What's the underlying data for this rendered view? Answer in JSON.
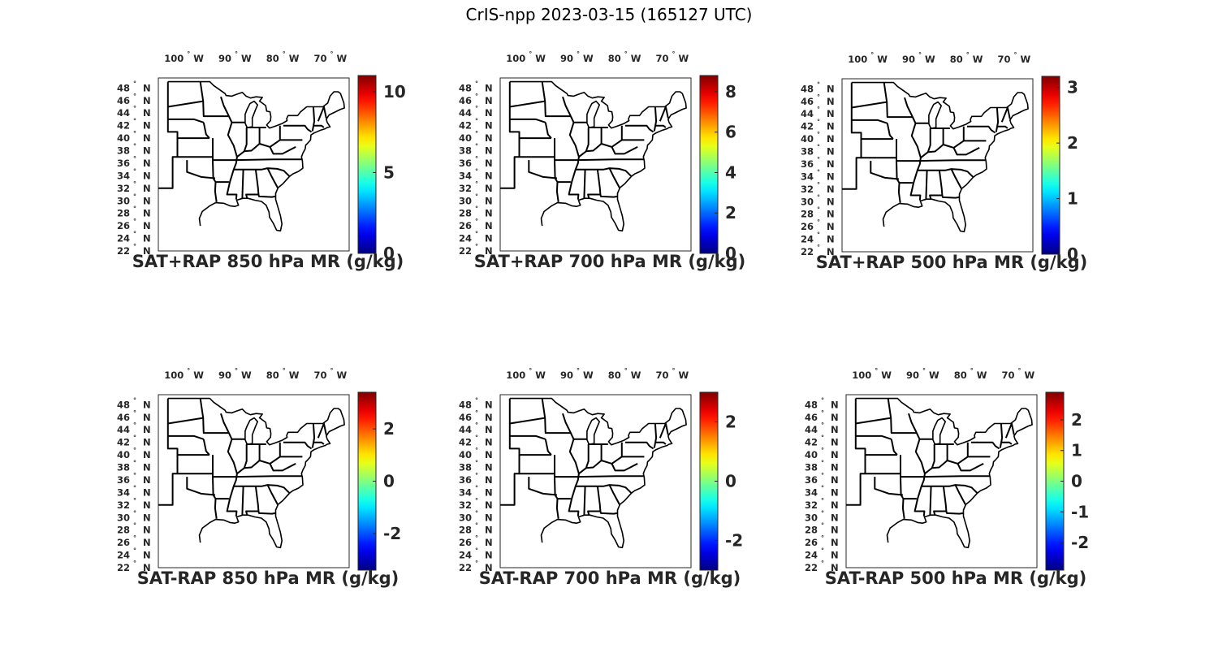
{
  "figure": {
    "title": "CrIS-npp 2023-03-15 (165127 UTC)"
  },
  "lon_ticks": [
    {
      "num": "100",
      "hem": "W"
    },
    {
      "num": "90",
      "hem": "W"
    },
    {
      "num": "80",
      "hem": "W"
    },
    {
      "num": "70",
      "hem": "W"
    }
  ],
  "lat_ticks": [
    {
      "num": "48",
      "hem": "N"
    },
    {
      "num": "46",
      "hem": "N"
    },
    {
      "num": "44",
      "hem": "N"
    },
    {
      "num": "42",
      "hem": "N"
    },
    {
      "num": "40",
      "hem": "N"
    },
    {
      "num": "38",
      "hem": "N"
    },
    {
      "num": "36",
      "hem": "N"
    },
    {
      "num": "34",
      "hem": "N"
    },
    {
      "num": "32",
      "hem": "N"
    },
    {
      "num": "30",
      "hem": "N"
    },
    {
      "num": "28",
      "hem": "N"
    },
    {
      "num": "26",
      "hem": "N"
    },
    {
      "num": "24",
      "hem": "N"
    },
    {
      "num": "22",
      "hem": "N"
    }
  ],
  "degree_symbol": "°",
  "colormap": "jet",
  "map_region": "Eastern United States",
  "panels": [
    {
      "title": "SAT+RAP 850 hPa MR (g/kg)",
      "colorbar": {
        "range": [
          0,
          11
        ],
        "ticks": [
          "0",
          "5",
          "10"
        ],
        "tick_values": [
          0,
          5,
          10
        ]
      }
    },
    {
      "title": "SAT+RAP 700 hPa MR (g/kg)",
      "colorbar": {
        "range": [
          0,
          8.8
        ],
        "ticks": [
          "0",
          "2",
          "4",
          "6",
          "8"
        ],
        "tick_values": [
          0,
          2,
          4,
          6,
          8
        ]
      }
    },
    {
      "title": "SAT+RAP 500 hPa MR (g/kg)",
      "colorbar": {
        "range": [
          0,
          3.2
        ],
        "ticks": [
          "0",
          "1",
          "2",
          "3"
        ],
        "tick_values": [
          0,
          1,
          2,
          3
        ]
      }
    },
    {
      "title": "SAT-RAP 850 hPa MR (g/kg)",
      "colorbar": {
        "range": [
          -3.4,
          3.4
        ],
        "ticks": [
          "-2",
          "0",
          "2"
        ],
        "tick_values": [
          -2,
          0,
          2
        ]
      }
    },
    {
      "title": "SAT-RAP 700 hPa MR (g/kg)",
      "colorbar": {
        "range": [
          -3.0,
          3.0
        ],
        "ticks": [
          "-2",
          "0",
          "2"
        ],
        "tick_values": [
          -2,
          0,
          2
        ]
      }
    },
    {
      "title": "SAT-RAP 500 hPa MR (g/kg)",
      "colorbar": {
        "range": [
          -2.9,
          2.9
        ],
        "ticks": [
          "-2",
          "-1",
          "0",
          "1",
          "2"
        ],
        "tick_values": [
          -2,
          -1,
          0,
          1,
          2
        ]
      }
    }
  ]
}
